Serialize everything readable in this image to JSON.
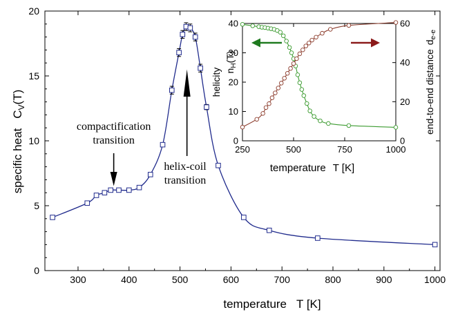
{
  "chart_data": [
    {
      "type": "line",
      "xlabel": "temperature",
      "xlabel_var": "T [K]",
      "ylabel": "specific heat",
      "ylabel_var": "C",
      "ylabel_sub": "V",
      "ylabel_arg": "(T)",
      "xlim": [
        235,
        1010
      ],
      "ylim": [
        0,
        20
      ],
      "xticks": [
        300,
        400,
        500,
        600,
        700,
        800,
        900,
        1000
      ],
      "yticks": [
        0,
        5,
        10,
        15,
        20
      ],
      "grid": false,
      "line_color": "#1f2a8c",
      "marker": "open-square",
      "series": [
        {
          "x": [
            250,
            318,
            336,
            352,
            364,
            380,
            400,
            420,
            442,
            466,
            484,
            498,
            505,
            512,
            520,
            530,
            540,
            552,
            575,
            625,
            675,
            770,
            1000
          ],
          "y": [
            4.1,
            5.2,
            5.8,
            6.0,
            6.2,
            6.2,
            6.2,
            6.4,
            7.4,
            9.7,
            13.9,
            16.8,
            18.2,
            18.8,
            18.7,
            18.0,
            15.6,
            12.6,
            8.1,
            4.1,
            3.1,
            2.5,
            2.0
          ],
          "err": [
            0,
            0,
            0,
            0,
            0,
            0,
            0,
            0,
            0,
            0,
            0.3,
            0.3,
            0.3,
            0.3,
            0.3,
            0.3,
            0.3,
            0.2,
            0,
            0,
            0,
            0,
            0
          ]
        }
      ],
      "annotations": [
        {
          "lines": [
            "compactification",
            "transition"
          ],
          "x": 370,
          "y": 6.2
        },
        {
          "lines": [
            "helix-coil",
            "transition"
          ],
          "x": 515,
          "y": 15.5
        }
      ]
    },
    {
      "type": "line",
      "inset": true,
      "xlabel": "temperature",
      "xlabel_var": "T [K]",
      "ylabel_left": "helicity",
      "ylabel_left_var": "n",
      "ylabel_left_sub": "H",
      "ylabel_left_arg": "(T)",
      "ylabel_right": "end-to-end distance",
      "ylabel_right_var": "d",
      "ylabel_right_sub": "e-e",
      "xlim": [
        250,
        1000
      ],
      "ylim_left": [
        0,
        40
      ],
      "ylim_right": [
        0,
        60
      ],
      "xticks": [
        250,
        500,
        750,
        1000
      ],
      "yticks_left": [
        0,
        10,
        20,
        30,
        40
      ],
      "yticks_right": [
        0,
        20,
        40,
        60
      ],
      "series": [
        {
          "axis": "left",
          "color": "#3a9a2e",
          "arrow_color": "#1f7a1f",
          "arrow_direction": "left",
          "x": [
            250,
            300,
            330,
            345,
            360,
            375,
            390,
            405,
            420,
            435,
            450,
            465,
            480,
            490,
            500,
            510,
            520,
            530,
            540,
            550,
            565,
            580,
            600,
            630,
            670,
            770,
            1000
          ],
          "y": [
            39.7,
            39.2,
            38.9,
            38.7,
            38.6,
            38.4,
            38.2,
            38.0,
            37.6,
            37.0,
            35.8,
            34.0,
            31.8,
            30.0,
            28.0,
            25.5,
            22.5,
            19.8,
            17.5,
            15.4,
            12.7,
            10.2,
            8.3,
            6.8,
            5.9,
            5.2,
            4.6
          ]
        },
        {
          "axis": "right",
          "color": "#8b3a2a",
          "arrow_color": "#8b1a1a",
          "arrow_direction": "right",
          "x": [
            250,
            320,
            350,
            365,
            380,
            395,
            410,
            425,
            440,
            455,
            470,
            485,
            500,
            515,
            530,
            545,
            560,
            575,
            590,
            610,
            640,
            680,
            770,
            1000
          ],
          "y": [
            7,
            11,
            14,
            17,
            19,
            22,
            24.5,
            27,
            29.5,
            32,
            34.5,
            37,
            39.5,
            42,
            44.5,
            46.5,
            48.5,
            50,
            51.5,
            53,
            55,
            57,
            59,
            60.5
          ]
        }
      ]
    }
  ]
}
